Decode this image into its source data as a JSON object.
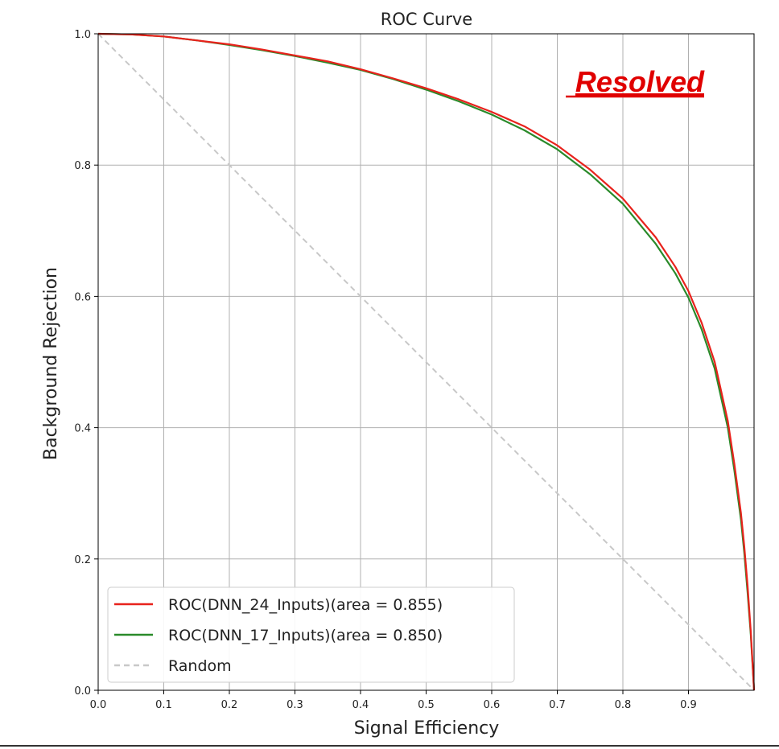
{
  "chart_data": {
    "type": "line",
    "title": "ROC Curve",
    "xlabel": "Signal Efficiency",
    "ylabel": "Background Rejection",
    "xlim": [
      0,
      1
    ],
    "ylim": [
      0,
      1
    ],
    "xticks": [
      "0.0",
      "0.1",
      "0.2",
      "0.3",
      "0.4",
      "0.5",
      "0.6",
      "0.7",
      "0.8",
      "0.9"
    ],
    "xtick_values": [
      0,
      0.1,
      0.2,
      0.3,
      0.4,
      0.5,
      0.6,
      0.7,
      0.8,
      0.9
    ],
    "yticks": [
      "0.0",
      "0.2",
      "0.4",
      "0.6",
      "0.8",
      "1.0"
    ],
    "ytick_values": [
      0,
      0.2,
      0.4,
      0.6,
      0.8,
      1.0
    ],
    "grid": true,
    "legend_position": "bottom-left",
    "annotation": {
      "text": "Resolved",
      "color": "#e00000"
    },
    "series": [
      {
        "name": "ROC(DNN_24_Inputs)(area = 0.855)",
        "color": "#e8221c",
        "style": "solid",
        "x": [
          0.0,
          0.05,
          0.1,
          0.15,
          0.2,
          0.25,
          0.3,
          0.35,
          0.4,
          0.45,
          0.5,
          0.55,
          0.6,
          0.65,
          0.7,
          0.75,
          0.8,
          0.85,
          0.88,
          0.9,
          0.92,
          0.94,
          0.96,
          0.97,
          0.98,
          0.985,
          0.99,
          0.995,
          1.0
        ],
        "y": [
          1.0,
          0.999,
          0.996,
          0.99,
          0.984,
          0.976,
          0.967,
          0.958,
          0.946,
          0.932,
          0.917,
          0.9,
          0.881,
          0.859,
          0.83,
          0.793,
          0.749,
          0.69,
          0.645,
          0.608,
          0.56,
          0.5,
          0.41,
          0.345,
          0.27,
          0.22,
          0.16,
          0.09,
          0.0
        ]
      },
      {
        "name": "ROC(DNN_17_Inputs)(area = 0.850)",
        "color": "#2a8a2a",
        "style": "solid",
        "x": [
          0.0,
          0.05,
          0.1,
          0.15,
          0.2,
          0.25,
          0.3,
          0.35,
          0.4,
          0.45,
          0.5,
          0.55,
          0.6,
          0.65,
          0.7,
          0.75,
          0.8,
          0.85,
          0.88,
          0.9,
          0.92,
          0.94,
          0.96,
          0.97,
          0.98,
          0.985,
          0.99,
          0.995,
          1.0
        ],
        "y": [
          1.0,
          0.999,
          0.996,
          0.99,
          0.983,
          0.975,
          0.966,
          0.956,
          0.945,
          0.931,
          0.915,
          0.897,
          0.877,
          0.853,
          0.824,
          0.786,
          0.741,
          0.68,
          0.635,
          0.598,
          0.55,
          0.49,
          0.4,
          0.335,
          0.26,
          0.21,
          0.15,
          0.085,
          0.0
        ]
      },
      {
        "name": "Random",
        "color": "#c8c8c8",
        "style": "dashed",
        "x": [
          0.0,
          1.0
        ],
        "y": [
          1.0,
          0.0
        ]
      }
    ]
  }
}
